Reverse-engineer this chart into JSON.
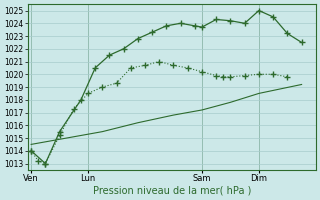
{
  "background_color": "#cce8e8",
  "line_color": "#2d6a2d",
  "grid_color": "#a8cccc",
  "title": "Pression niveau de la mer( hPa )",
  "ylim": [
    1012.5,
    1025.5
  ],
  "yticks": [
    1013,
    1014,
    1015,
    1016,
    1017,
    1018,
    1019,
    1020,
    1021,
    1022,
    1023,
    1024,
    1025
  ],
  "day_labels": [
    "Ven",
    "Lun",
    "Sam",
    "Dim"
  ],
  "day_positions": [
    0,
    16,
    48,
    64
  ],
  "xlim": [
    -1,
    80
  ],
  "s1_x": [
    0,
    2,
    4,
    8,
    12,
    16,
    20,
    24,
    28,
    32,
    36,
    40,
    44,
    48,
    52,
    54,
    56,
    60,
    64,
    68,
    72
  ],
  "s1_y": [
    1014.0,
    1013.2,
    1013.0,
    1015.2,
    1017.3,
    1018.5,
    1019.0,
    1019.3,
    1020.5,
    1020.7,
    1021.0,
    1020.7,
    1020.5,
    1020.2,
    1019.9,
    1019.8,
    1019.8,
    1019.9,
    1020.0,
    1020.0,
    1019.8
  ],
  "s2_x": [
    0,
    4,
    8,
    14,
    18,
    22,
    26,
    30,
    34,
    38,
    42,
    46,
    48,
    52,
    56,
    60,
    64,
    68,
    72,
    76
  ],
  "s2_y": [
    1014.0,
    1013.0,
    1015.5,
    1018.0,
    1020.5,
    1021.5,
    1022.0,
    1022.8,
    1023.3,
    1023.8,
    1024.0,
    1023.8,
    1023.7,
    1024.3,
    1024.2,
    1024.0,
    1025.0,
    1024.5,
    1023.2,
    1022.5
  ],
  "s3_x": [
    0,
    10,
    20,
    30,
    40,
    48,
    56,
    64,
    76
  ],
  "s3_y": [
    1014.5,
    1015.0,
    1015.5,
    1016.2,
    1016.8,
    1017.2,
    1017.8,
    1018.5,
    1019.2
  ]
}
